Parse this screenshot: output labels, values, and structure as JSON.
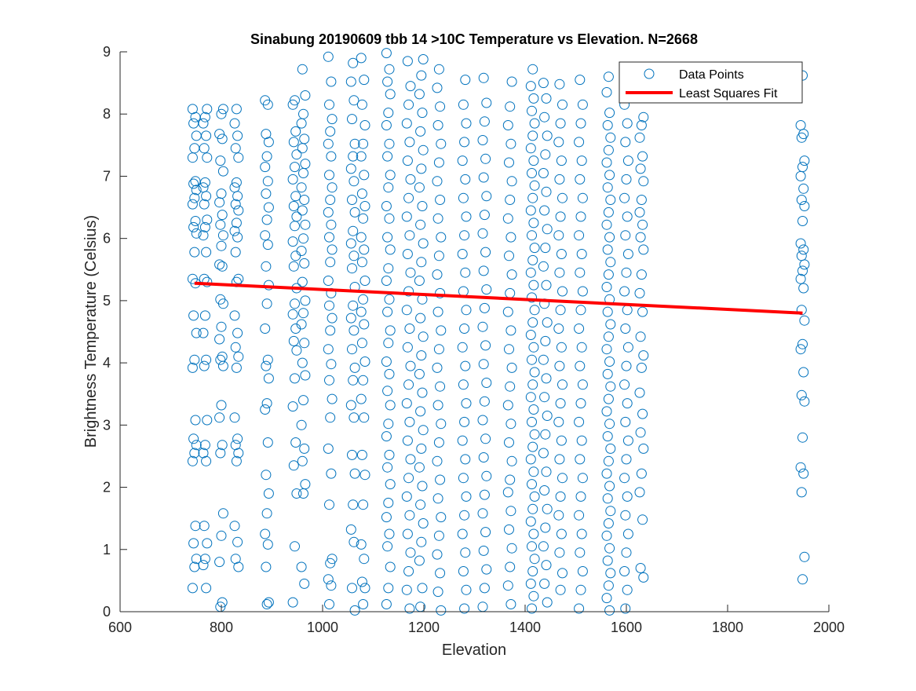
{
  "chart_data": {
    "type": "scatter",
    "title": "Sinabung 20190609 tbb 14 >10C Temperature vs Elevation. N=2668",
    "xlabel": "Elevation",
    "ylabel": "Brightness Temperature (Celsius)",
    "xlim": [
      600,
      2000
    ],
    "ylim": [
      0,
      9
    ],
    "xticks": [
      "600",
      "800",
      "1000",
      "1200",
      "1400",
      "1600",
      "1800",
      "2000"
    ],
    "yticks": [
      "0",
      "1",
      "2",
      "3",
      "4",
      "5",
      "6",
      "7",
      "8",
      "9"
    ],
    "grid": false,
    "legend_position": "top-right",
    "colors": {
      "points": "#0072BD",
      "fit": "#FF0000",
      "axes": "#262626"
    },
    "series": [
      {
        "name": "Data Points",
        "marker": "circle-open",
        "columns": [
          {
            "x": 747,
            "y": [
              0.38,
              0.72,
              0.85,
              1.1,
              1.38,
              2.42,
              2.55,
              2.68,
              2.78,
              3.08,
              3.92,
              4.05,
              4.48,
              4.76,
              5.28,
              5.35,
              5.78,
              6.08,
              6.18,
              6.28,
              6.55,
              6.65,
              6.78,
              6.88,
              6.92,
              7.3,
              7.45,
              7.65,
              7.85,
              7.95,
              8.08
            ]
          },
          {
            "x": 768,
            "y": [
              0.38,
              0.75,
              0.85,
              1.1,
              1.38,
              2.42,
              2.55,
              2.68,
              3.08,
              3.95,
              4.05,
              4.48,
              4.76,
              5.3,
              5.35,
              5.78,
              6.05,
              6.18,
              6.3,
              6.55,
              6.68,
              6.82,
              6.9,
              7.3,
              7.45,
              7.65,
              7.85,
              7.95,
              8.08
            ]
          },
          {
            "x": 800,
            "y": [
              0.08,
              0.15,
              0.8,
              1.22,
              1.58,
              2.55,
              2.68,
              3.12,
              3.32,
              3.95,
              4.05,
              4.1,
              4.38,
              4.58,
              4.95,
              5.02,
              5.55,
              5.58,
              5.88,
              6.05,
              6.22,
              6.38,
              6.58,
              6.72,
              7.08,
              7.25,
              7.6,
              7.68,
              8.0,
              8.08
            ]
          },
          {
            "x": 830,
            "y": [
              0.72,
              0.85,
              1.12,
              1.38,
              2.42,
              2.55,
              2.68,
              2.78,
              3.12,
              3.92,
              4.1,
              4.25,
              4.48,
              4.76,
              5.3,
              5.35,
              5.78,
              6.02,
              6.12,
              6.25,
              6.45,
              6.55,
              6.68,
              6.82,
              6.9,
              7.3,
              7.45,
              7.65,
              7.85,
              8.08
            ]
          },
          {
            "x": 890,
            "y": [
              0.12,
              0.15,
              0.72,
              1.08,
              1.25,
              1.58,
              1.9,
              2.2,
              2.72,
              3.25,
              3.35,
              3.75,
              3.95,
              4.05,
              4.55,
              4.95,
              5.25,
              5.55,
              5.9,
              6.05,
              6.3,
              6.5,
              6.72,
              6.92,
              7.15,
              7.32,
              7.55,
              7.68,
              8.15,
              8.22
            ]
          },
          {
            "x": 945,
            "y": [
              0.15,
              1.05,
              1.9,
              2.35,
              2.72,
              3.3,
              3.75,
              4.2,
              4.35,
              4.55,
              4.78,
              4.95,
              5.2,
              5.55,
              5.72,
              5.95,
              6.2,
              6.35,
              6.52,
              6.68,
              6.95,
              7.15,
              7.35,
              7.55,
              7.72,
              8.15,
              8.22
            ]
          },
          {
            "x": 962,
            "y": [
              0.45,
              0.72,
              1.9,
              2.05,
              2.42,
              2.62,
              3.0,
              3.4,
              3.8,
              4.0,
              4.32,
              4.62,
              4.8,
              5.0,
              5.3,
              5.6,
              5.8,
              6.0,
              6.22,
              6.45,
              6.62,
              6.82,
              7.05,
              7.2,
              7.45,
              7.6,
              7.85,
              8.0,
              8.3,
              8.72
            ]
          },
          {
            "x": 1015,
            "y": [
              0.12,
              0.42,
              0.52,
              0.78,
              0.85,
              1.72,
              2.22,
              2.62,
              3.12,
              3.42,
              3.72,
              3.98,
              4.22,
              4.52,
              4.72,
              4.92,
              5.12,
              5.32,
              5.62,
              5.82,
              6.02,
              6.22,
              6.42,
              6.62,
              6.82,
              7.02,
              7.32,
              7.52,
              7.72,
              7.92,
              8.15,
              8.52,
              8.92
            ]
          },
          {
            "x": 1060,
            "y": [
              0.02,
              0.38,
              1.12,
              1.32,
              1.72,
              2.22,
              2.52,
              3.12,
              3.32,
              3.72,
              3.92,
              4.22,
              4.52,
              4.72,
              4.92,
              5.22,
              5.52,
              5.72,
              5.92,
              6.12,
              6.42,
              6.62,
              6.92,
              7.12,
              7.32,
              7.52,
              7.92,
              8.22,
              8.52,
              8.82
            ]
          },
          {
            "x": 1080,
            "y": [
              0.12,
              0.38,
              0.48,
              0.85,
              1.08,
              1.72,
              2.2,
              2.52,
              3.12,
              3.42,
              3.72,
              4.02,
              4.32,
              4.62,
              4.82,
              5.02,
              5.32,
              5.62,
              5.82,
              6.02,
              6.32,
              6.52,
              6.72,
              7.02,
              7.32,
              7.52,
              7.82,
              8.15,
              8.55,
              8.9
            ]
          },
          {
            "x": 1130,
            "y": [
              0.12,
              0.38,
              0.72,
              1.05,
              1.25,
              1.52,
              1.75,
              2.05,
              2.32,
              2.52,
              2.82,
              3.02,
              3.32,
              3.55,
              3.82,
              4.02,
              4.32,
              4.52,
              4.82,
              5.02,
              5.32,
              5.52,
              5.82,
              6.02,
              6.32,
              6.52,
              6.82,
              7.02,
              7.32,
              7.52,
              7.82,
              8.02,
              8.32,
              8.52,
              8.72,
              8.98
            ]
          },
          {
            "x": 1170,
            "y": [
              0.05,
              0.35,
              0.65,
              0.95,
              1.25,
              1.55,
              1.85,
              2.15,
              2.45,
              2.75,
              3.05,
              3.35,
              3.65,
              3.95,
              4.25,
              4.55,
              4.85,
              5.15,
              5.45,
              5.75,
              6.05,
              6.35,
              6.65,
              6.95,
              7.25,
              7.55,
              7.85,
              8.15,
              8.45,
              8.85
            ]
          },
          {
            "x": 1195,
            "y": [
              0.08,
              0.38,
              0.82,
              1.12,
              1.42,
              1.72,
              2.02,
              2.32,
              2.62,
              2.92,
              3.22,
              3.52,
              3.82,
              4.12,
              4.42,
              4.72,
              5.02,
              5.32,
              5.62,
              5.92,
              6.22,
              6.52,
              6.82,
              7.12,
              7.42,
              7.72,
              8.02,
              8.32,
              8.62,
              8.88
            ]
          },
          {
            "x": 1230,
            "y": [
              0.02,
              0.32,
              0.62,
              0.92,
              1.22,
              1.52,
              1.82,
              2.12,
              2.42,
              2.72,
              3.02,
              3.32,
              3.62,
              3.92,
              4.22,
              4.52,
              4.82,
              5.12,
              5.42,
              5.72,
              6.02,
              6.32,
              6.62,
              6.92,
              7.22,
              7.52,
              7.82,
              8.12,
              8.42,
              8.72
            ]
          },
          {
            "x": 1280,
            "y": [
              0.05,
              0.35,
              0.65,
              0.95,
              1.25,
              1.55,
              1.85,
              2.15,
              2.45,
              2.75,
              3.05,
              3.35,
              3.65,
              3.95,
              4.25,
              4.55,
              4.85,
              5.15,
              5.45,
              5.75,
              6.05,
              6.35,
              6.65,
              6.95,
              7.25,
              7.55,
              7.85,
              8.15,
              8.55
            ]
          },
          {
            "x": 1320,
            "y": [
              0.08,
              0.38,
              0.68,
              0.98,
              1.28,
              1.58,
              1.88,
              2.18,
              2.48,
              2.78,
              3.08,
              3.38,
              3.68,
              3.98,
              4.28,
              4.58,
              4.88,
              5.18,
              5.48,
              5.78,
              6.08,
              6.38,
              6.68,
              6.98,
              7.28,
              7.58,
              7.88,
              8.18,
              8.58
            ]
          },
          {
            "x": 1370,
            "y": [
              0.12,
              0.42,
              0.72,
              1.02,
              1.32,
              1.62,
              1.92,
              2.12,
              2.42,
              2.72,
              3.02,
              3.32,
              3.62,
              3.92,
              4.22,
              4.52,
              4.82,
              5.12,
              5.42,
              5.72,
              6.02,
              6.32,
              6.62,
              6.92,
              7.22,
              7.52,
              7.82,
              8.12,
              8.52
            ]
          },
          {
            "x": 1415,
            "y": [
              0.05,
              0.25,
              0.45,
              0.65,
              0.85,
              1.05,
              1.25,
              1.45,
              1.65,
              1.85,
              2.05,
              2.25,
              2.45,
              2.65,
              2.85,
              3.05,
              3.25,
              3.45,
              3.65,
              3.85,
              4.05,
              4.25,
              4.45,
              4.65,
              4.85,
              5.05,
              5.25,
              5.45,
              5.65,
              5.85,
              6.05,
              6.25,
              6.45,
              6.65,
              6.85,
              7.05,
              7.25,
              7.45,
              7.65,
              7.85,
              8.05,
              8.25,
              8.45,
              8.72
            ]
          },
          {
            "x": 1440,
            "y": [
              0.15,
              0.45,
              0.75,
              1.05,
              1.35,
              1.65,
              1.95,
              2.25,
              2.55,
              2.85,
              3.15,
              3.45,
              3.75,
              4.05,
              4.35,
              4.65,
              4.95,
              5.25,
              5.55,
              5.85,
              6.15,
              6.45,
              6.75,
              7.05,
              7.35,
              7.65,
              7.95,
              8.25,
              8.5
            ]
          },
          {
            "x": 1470,
            "y": [
              0.35,
              0.62,
              0.95,
              1.25,
              1.55,
              1.85,
              2.15,
              2.45,
              2.75,
              3.05,
              3.35,
              3.65,
              3.95,
              4.25,
              4.55,
              4.85,
              5.15,
              5.45,
              5.75,
              6.05,
              6.35,
              6.65,
              6.95,
              7.25,
              7.55,
              7.85,
              8.15,
              8.48
            ]
          },
          {
            "x": 1510,
            "y": [
              0.05,
              0.35,
              0.65,
              0.95,
              1.25,
              1.55,
              1.85,
              2.15,
              2.45,
              2.75,
              3.05,
              3.35,
              3.65,
              3.95,
              4.25,
              4.55,
              4.85,
              5.15,
              5.45,
              5.75,
              6.05,
              6.35,
              6.65,
              6.95,
              7.25,
              7.55,
              7.85,
              8.15,
              8.55
            ]
          },
          {
            "x": 1565,
            "y": [
              0.02,
              0.22,
              0.42,
              0.62,
              0.82,
              1.02,
              1.22,
              1.42,
              1.62,
              1.82,
              2.02,
              2.22,
              2.42,
              2.62,
              2.82,
              3.02,
              3.22,
              3.42,
              3.62,
              3.82,
              4.02,
              4.22,
              4.42,
              4.62,
              4.82,
              5.02,
              5.22,
              5.42,
              5.62,
              5.82,
              6.02,
              6.22,
              6.42,
              6.62,
              6.82,
              7.02,
              7.22,
              7.42,
              7.62,
              7.82,
              8.02,
              8.35,
              8.6
            ]
          },
          {
            "x": 1600,
            "y": [
              0.05,
              0.35,
              0.65,
              0.95,
              1.25,
              1.55,
              1.85,
              2.15,
              2.45,
              2.75,
              3.05,
              3.35,
              3.65,
              3.95,
              4.25,
              4.55,
              4.85,
              5.15,
              5.45,
              5.75,
              6.05,
              6.35,
              6.65,
              6.95,
              7.25,
              7.55,
              7.85,
              8.15
            ]
          },
          {
            "x": 1630,
            "y": [
              0.55,
              0.7,
              1.48,
              1.92,
              2.22,
              2.62,
              2.88,
              3.18,
              3.52,
              3.92,
              4.12,
              4.42,
              4.82,
              5.12,
              5.42,
              5.82,
              6.02,
              6.22,
              6.42,
              6.62,
              6.92,
              7.12,
              7.32,
              7.62,
              7.82,
              7.95
            ]
          },
          {
            "x": 1948,
            "y": [
              0.52,
              0.88,
              1.92,
              2.22,
              2.32,
              2.8,
              3.38,
              3.48,
              3.85,
              4.22,
              4.3,
              4.68,
              4.85,
              5.2,
              5.35,
              5.48,
              5.58,
              5.72,
              5.82,
              5.92,
              6.28,
              6.52,
              6.62,
              6.8,
              7.0,
              7.15,
              7.25,
              7.62,
              7.68,
              7.82,
              8.62
            ]
          }
        ]
      },
      {
        "name": "Least Squares Fit",
        "type": "line",
        "x": [
          747,
          1948
        ],
        "y": [
          5.28,
          4.8
        ]
      }
    ]
  }
}
